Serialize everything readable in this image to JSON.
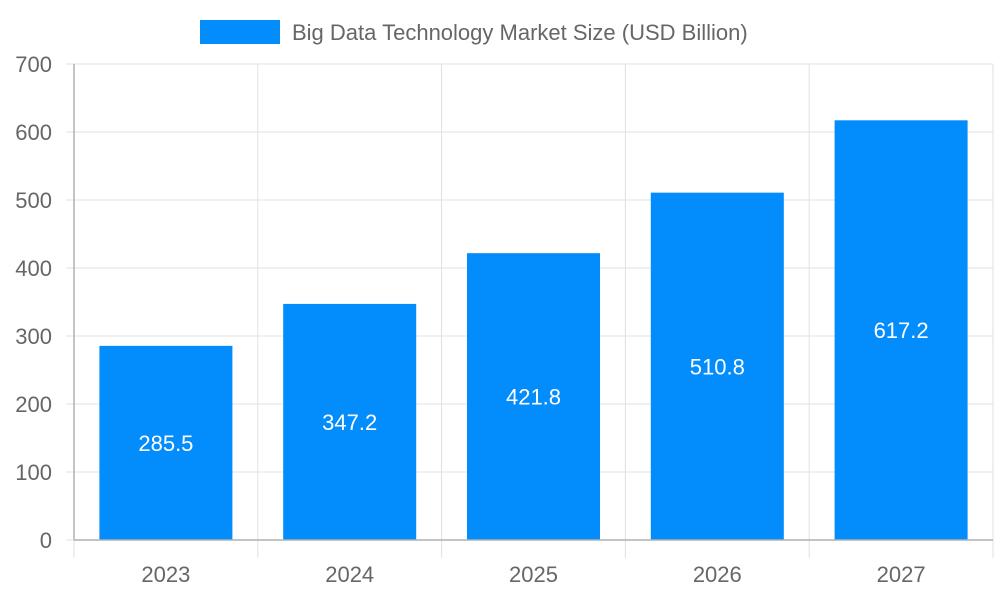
{
  "chart_data": {
    "type": "bar",
    "title": "",
    "xlabel": "",
    "ylabel": "",
    "categories": [
      "2023",
      "2024",
      "2025",
      "2026",
      "2027"
    ],
    "series": [
      {
        "name": "Big Data Technology Market Size (USD Billion)",
        "values": [
          285.5,
          347.2,
          421.8,
          510.8,
          617.2
        ],
        "color": "#038cfc"
      }
    ],
    "data_labels": [
      "285.5",
      "347.2",
      "421.8",
      "510.8",
      "617.2"
    ],
    "ylim": [
      0,
      700
    ],
    "yticks": [
      "0",
      "100",
      "200",
      "300",
      "400",
      "500",
      "600",
      "700"
    ],
    "grid": true,
    "legend": "top-center",
    "colors": {
      "text": "#666666",
      "grid": "#e0e0e0",
      "axis": "#b0b0b0",
      "label": "#ffffff"
    }
  }
}
